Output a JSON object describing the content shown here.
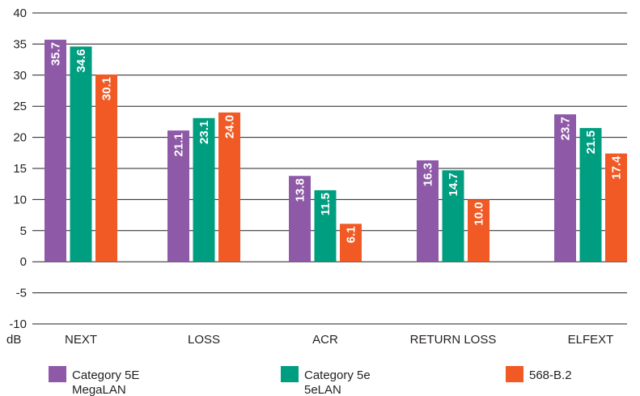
{
  "chart_data": {
    "type": "bar",
    "categories": [
      "NEXT",
      "LOSS",
      "ACR",
      "RETURN LOSS",
      "ELFEXT"
    ],
    "series": [
      {
        "name": "Category 5E MegaLAN",
        "legend_lines": [
          "Category 5E",
          "MegaLAN"
        ],
        "color": "#8e5aa8",
        "values": [
          35.7,
          21.1,
          13.8,
          16.3,
          23.7
        ]
      },
      {
        "name": "Category 5e 5eLAN",
        "legend_lines": [
          "Category 5e",
          "5eLAN"
        ],
        "color": "#009e80",
        "values": [
          34.6,
          23.1,
          11.5,
          14.7,
          21.5
        ]
      },
      {
        "name": "568-B.2",
        "legend_lines": [
          "568-B.2"
        ],
        "color": "#f15a24",
        "values": [
          30.1,
          24.0,
          6.1,
          10.0,
          17.4
        ]
      }
    ],
    "ylabel": "dB",
    "ylim": [
      -10,
      40
    ],
    "yticks": [
      -10,
      -5,
      0,
      5,
      10,
      15,
      20,
      25,
      30,
      35,
      40
    ],
    "grid": true,
    "legend_position": "bottom"
  }
}
